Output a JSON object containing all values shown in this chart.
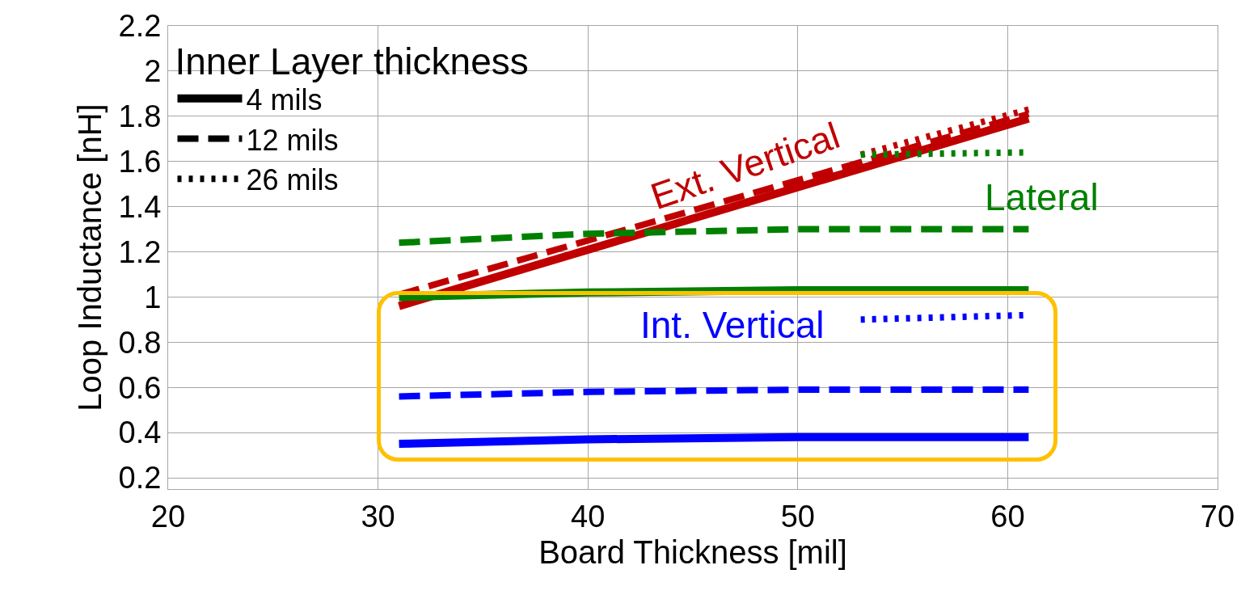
{
  "chart_data": {
    "type": "line",
    "xlabel": "Board Thickness [mil]",
    "ylabel": "Loop Inductance [nH]",
    "legend_title": "Inner Layer thickness",
    "xlim": [
      20,
      70
    ],
    "ylim": [
      0.15,
      2.2
    ],
    "xticks": [
      20,
      30,
      40,
      50,
      60,
      70
    ],
    "yticks": [
      0.2,
      0.4,
      0.6,
      0.8,
      1,
      1.2,
      1.4,
      1.6,
      1.8,
      2,
      2.2
    ],
    "grid": true,
    "legend": "top left",
    "marker": "none",
    "series": [
      {
        "name": "4 mils",
        "color": "#000000",
        "line_style": "solid"
      },
      {
        "name": "12 mils",
        "color": "#000000",
        "line_style": "dashed"
      },
      {
        "name": "26 mils",
        "color": "#000000",
        "line_style": "dotted"
      },
      {
        "color": "#c00000",
        "line_style": "dotted",
        "x": [
          53,
          61
        ],
        "values": [
          1.63,
          1.83
        ]
      },
      {
        "color": "#c00000",
        "line_style": "dashed",
        "x": [
          31,
          61
        ],
        "values": [
          1.01,
          1.81
        ]
      },
      {
        "color": "#c00000",
        "line_style": "solid",
        "x": [
          31,
          61
        ],
        "values": [
          0.96,
          1.79
        ]
      },
      {
        "color": "#008000",
        "line_style": "dotted",
        "x": [
          53,
          61
        ],
        "values": [
          1.63,
          1.64
        ]
      },
      {
        "color": "#008000",
        "line_style": "dashed",
        "x": [
          31,
          40,
          50,
          61
        ],
        "values": [
          1.24,
          1.28,
          1.3,
          1.3
        ]
      },
      {
        "color": "#008000",
        "line_style": "solid",
        "x": [
          31,
          40,
          50,
          61
        ],
        "values": [
          1.0,
          1.02,
          1.03,
          1.03
        ]
      },
      {
        "color": "#0000ff",
        "line_style": "dotted",
        "x": [
          53,
          61
        ],
        "values": [
          0.9,
          0.92
        ]
      },
      {
        "color": "#0000ff",
        "line_style": "dashed",
        "x": [
          31,
          40,
          50,
          61
        ],
        "values": [
          0.56,
          0.58,
          0.59,
          0.59
        ]
      },
      {
        "color": "#0000ff",
        "line_style": "solid",
        "x": [
          31,
          40,
          50,
          61
        ],
        "values": [
          0.35,
          0.37,
          0.38,
          0.38
        ]
      }
    ],
    "annotations": [
      "Ext. Vertical",
      "Lateral",
      "Int. Vertical"
    ]
  }
}
